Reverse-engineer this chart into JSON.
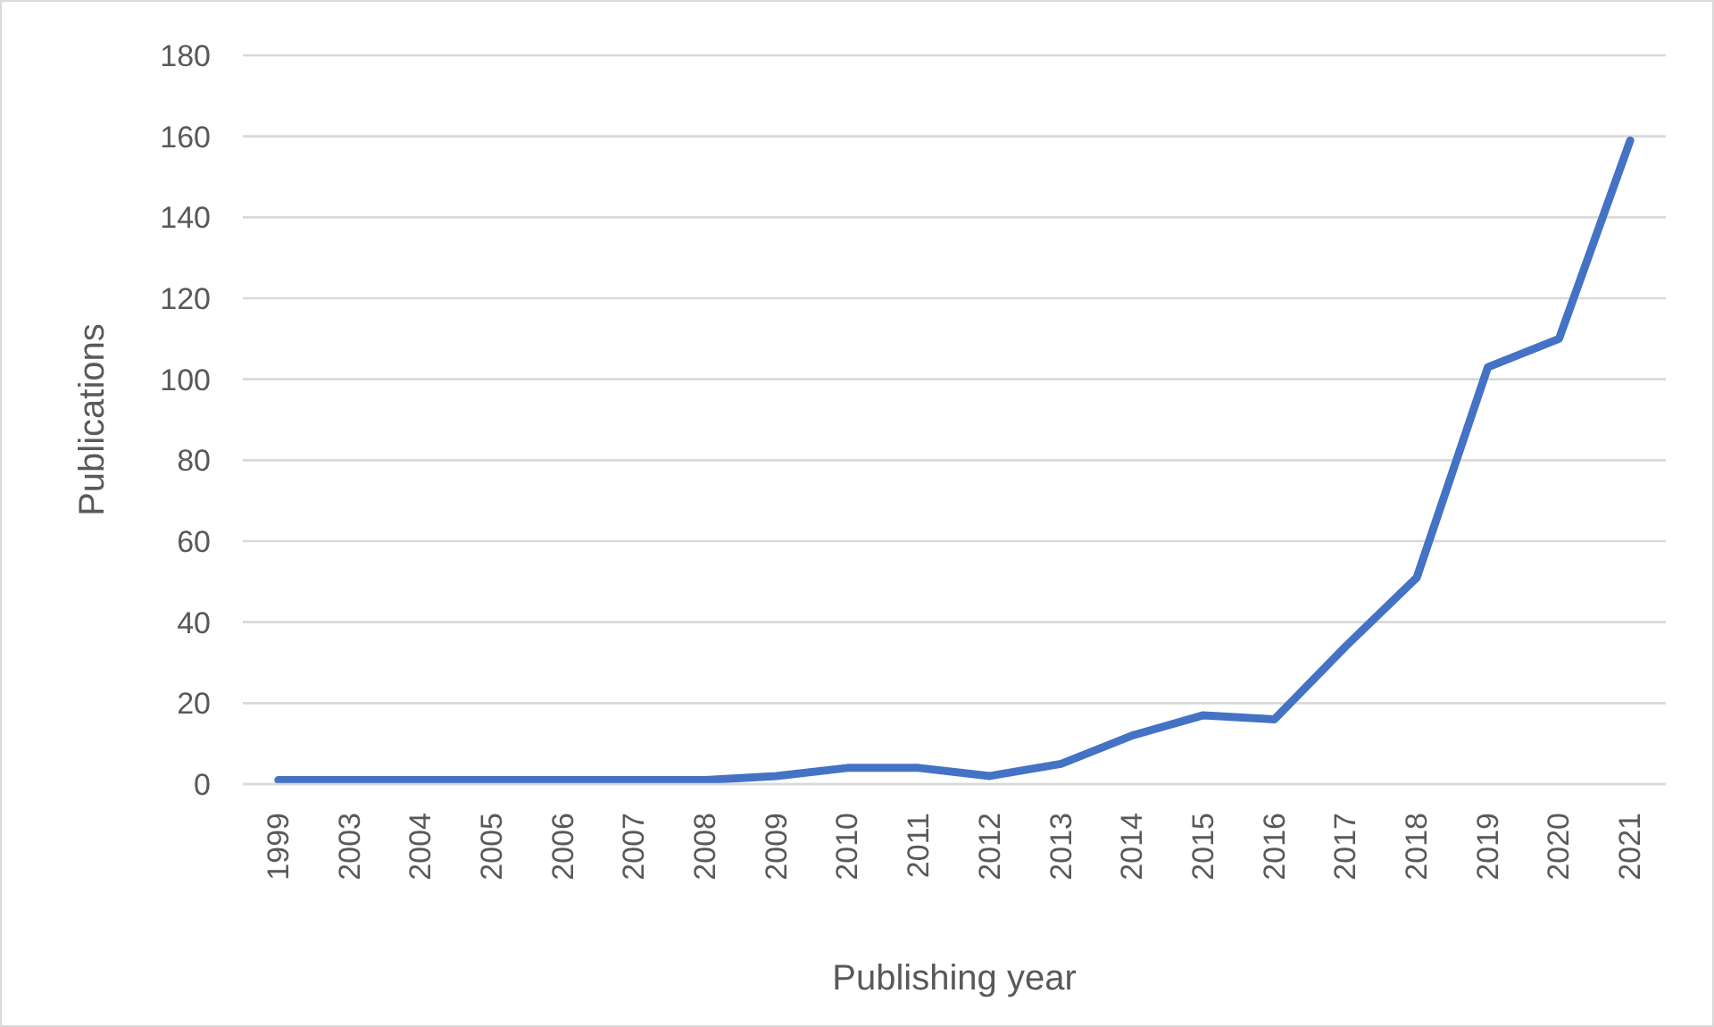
{
  "chart_data": {
    "type": "line",
    "xlabel": "Publishing year",
    "ylabel": "Publications",
    "categories": [
      "1999",
      "2003",
      "2004",
      "2005",
      "2006",
      "2007",
      "2008",
      "2009",
      "2010",
      "2011",
      "2012",
      "2013",
      "2014",
      "2015",
      "2016",
      "2017",
      "2018",
      "2019",
      "2020",
      "2021"
    ],
    "series": [
      {
        "color": "#4472c4",
        "values": [
          1,
          1,
          1,
          1,
          1,
          1,
          1,
          2,
          4,
          4,
          2,
          5,
          12,
          17,
          16,
          34,
          51,
          103,
          110,
          159
        ]
      }
    ],
    "ylim": [
      0,
      180
    ],
    "yticks": [
      0,
      20,
      40,
      60,
      80,
      100,
      120,
      140,
      160,
      180
    ],
    "grid": "y",
    "legend": false,
    "marker": "none",
    "line_style": "solid"
  }
}
